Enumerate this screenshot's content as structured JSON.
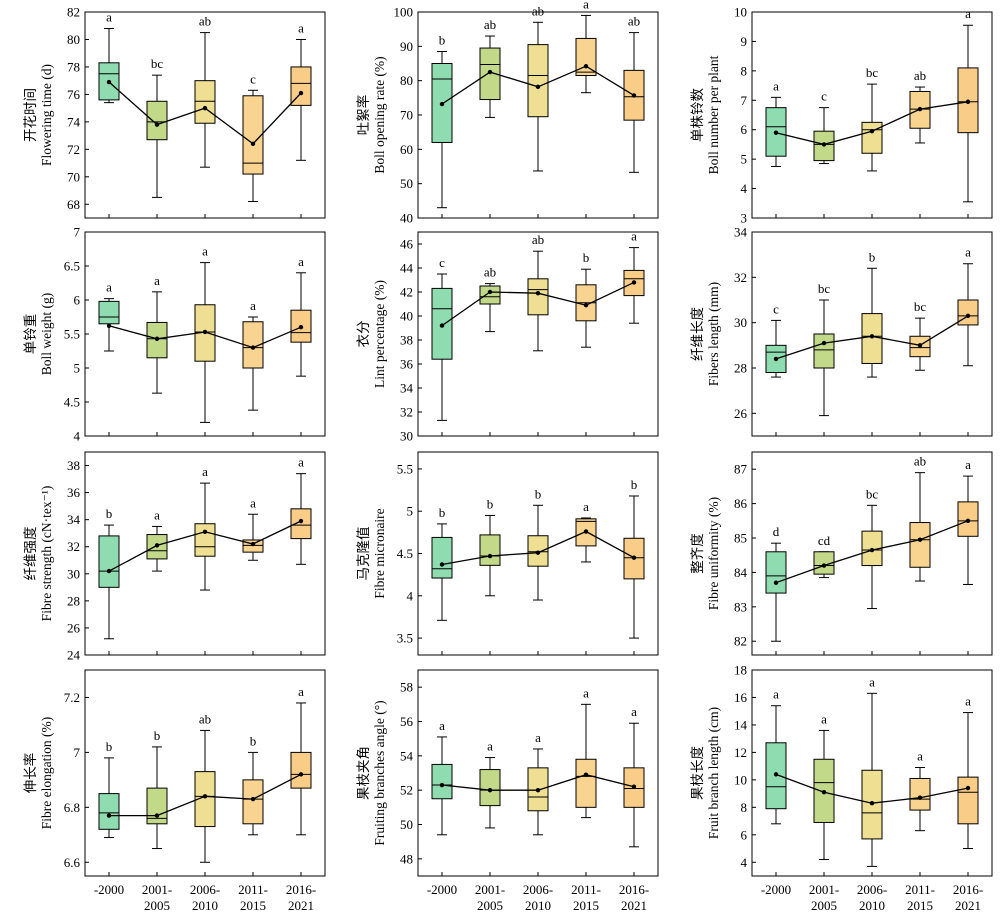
{
  "categories": [
    "-2000",
    "2001-\n2005",
    "2006-\n2010",
    "2011-\n2015",
    "2016-\n2021"
  ],
  "colors": [
    "#8fdcb0",
    "#c3d98a",
    "#eedf92",
    "#f8d490",
    "#f9cd88"
  ],
  "chart_data": [
    {
      "type": "box",
      "ylabel_cn": "开花时间",
      "ylabel_en": "Flowering time (d)",
      "ylim": [
        67,
        82
      ],
      "yticks": [
        68,
        70,
        72,
        74,
        76,
        78,
        80,
        82
      ],
      "boxes": [
        {
          "min": 75.4,
          "q1": 75.6,
          "median": 77.5,
          "q3": 78.3,
          "max": 80.8,
          "mean": 76.9,
          "sig": "a"
        },
        {
          "min": 68.5,
          "q1": 72.7,
          "median": 74.0,
          "q3": 75.5,
          "max": 77.4,
          "mean": 73.8,
          "sig": "bc"
        },
        {
          "min": 70.7,
          "q1": 73.9,
          "median": 75.5,
          "q3": 77.0,
          "max": 80.5,
          "mean": 75.0,
          "sig": "ab"
        },
        {
          "min": 68.2,
          "q1": 70.2,
          "median": 71.0,
          "q3": 75.9,
          "max": 76.3,
          "mean": 72.4,
          "sig": "c"
        },
        {
          "min": 71.2,
          "q1": 75.2,
          "median": 76.8,
          "q3": 78.0,
          "max": 80.0,
          "mean": 76.1,
          "sig": "a"
        }
      ]
    },
    {
      "type": "box",
      "ylabel_cn": "吐絮率",
      "ylabel_en": "Boll opening rate (%)",
      "ylim": [
        40,
        100
      ],
      "yticks": [
        40,
        50,
        60,
        70,
        80,
        90,
        100
      ],
      "boxes": [
        {
          "min": 43.0,
          "q1": 62.0,
          "median": 80.5,
          "q3": 85.0,
          "max": 88.5,
          "mean": 73.2,
          "sig": "b"
        },
        {
          "min": 69.3,
          "q1": 74.5,
          "median": 84.7,
          "q3": 89.5,
          "max": 93.0,
          "mean": 82.5,
          "sig": "ab"
        },
        {
          "min": 53.7,
          "q1": 69.5,
          "median": 81.5,
          "q3": 90.5,
          "max": 97.0,
          "mean": 78.2,
          "sig": "ab"
        },
        {
          "min": 76.5,
          "q1": 81.5,
          "median": 82.5,
          "q3": 92.3,
          "max": 99.0,
          "mean": 84.2,
          "sig": "a"
        },
        {
          "min": 53.3,
          "q1": 68.5,
          "median": 75.3,
          "q3": 83.0,
          "max": 94.0,
          "mean": 75.7,
          "sig": "ab"
        }
      ]
    },
    {
      "type": "box",
      "ylabel_cn": "单株铃数",
      "ylabel_en": "Boll number per plant",
      "ylim": [
        3,
        10
      ],
      "yticks": [
        3,
        4,
        5,
        6,
        7,
        8,
        9,
        10
      ],
      "boxes": [
        {
          "min": 4.75,
          "q1": 5.1,
          "median": 6.1,
          "q3": 6.75,
          "max": 7.1,
          "mean": 5.9,
          "sig": "a"
        },
        {
          "min": 4.85,
          "q1": 4.95,
          "median": 5.5,
          "q3": 5.95,
          "max": 6.75,
          "mean": 5.5,
          "sig": "c"
        },
        {
          "min": 4.6,
          "q1": 5.2,
          "median": 6.0,
          "q3": 6.25,
          "max": 7.55,
          "mean": 5.95,
          "sig": "bc"
        },
        {
          "min": 5.55,
          "q1": 6.05,
          "median": 6.7,
          "q3": 7.3,
          "max": 7.45,
          "mean": 6.7,
          "sig": "ab"
        },
        {
          "min": 3.55,
          "q1": 5.9,
          "median": 6.95,
          "q3": 8.1,
          "max": 9.55,
          "mean": 6.95,
          "sig": "a"
        }
      ]
    },
    {
      "type": "box",
      "ylabel_cn": "单铃重",
      "ylabel_en": "Boll weight (g)",
      "ylim": [
        4.0,
        7.0
      ],
      "yticks": [
        4.0,
        4.5,
        5.0,
        5.5,
        6.0,
        6.5,
        7.0
      ],
      "boxes": [
        {
          "min": 5.25,
          "q1": 5.65,
          "median": 5.75,
          "q3": 5.98,
          "max": 6.02,
          "mean": 5.62,
          "sig": "a"
        },
        {
          "min": 4.63,
          "q1": 5.15,
          "median": 5.43,
          "q3": 5.67,
          "max": 6.12,
          "mean": 5.43,
          "sig": "a"
        },
        {
          "min": 4.2,
          "q1": 5.1,
          "median": 5.53,
          "q3": 5.93,
          "max": 6.55,
          "mean": 5.53,
          "sig": "a"
        },
        {
          "min": 4.38,
          "q1": 5.0,
          "median": 5.3,
          "q3": 5.68,
          "max": 5.75,
          "mean": 5.3,
          "sig": "a"
        },
        {
          "min": 4.88,
          "q1": 5.38,
          "median": 5.52,
          "q3": 5.85,
          "max": 6.4,
          "mean": 5.6,
          "sig": "a"
        }
      ]
    },
    {
      "type": "box",
      "ylabel_cn": "衣分",
      "ylabel_en": "Lint percentage (%)",
      "ylim": [
        30,
        47
      ],
      "yticks": [
        30,
        32,
        34,
        36,
        38,
        40,
        42,
        44,
        46
      ],
      "boxes": [
        {
          "min": 31.3,
          "q1": 36.4,
          "median": 40.6,
          "q3": 42.3,
          "max": 43.5,
          "mean": 39.2,
          "sig": "c"
        },
        {
          "min": 38.7,
          "q1": 41.0,
          "median": 41.6,
          "q3": 42.5,
          "max": 42.7,
          "mean": 42.0,
          "sig": "ab"
        },
        {
          "min": 37.1,
          "q1": 40.1,
          "median": 42.2,
          "q3": 43.1,
          "max": 45.4,
          "mean": 41.9,
          "sig": "ab"
        },
        {
          "min": 37.4,
          "q1": 39.6,
          "median": 41.1,
          "q3": 42.6,
          "max": 43.9,
          "mean": 40.9,
          "sig": "b"
        },
        {
          "min": 39.4,
          "q1": 41.7,
          "median": 43.1,
          "q3": 43.8,
          "max": 45.7,
          "mean": 42.8,
          "sig": "a"
        }
      ]
    },
    {
      "type": "box",
      "ylabel_cn": "纤维长度",
      "ylabel_en": "Fibers length (mm)",
      "ylim": [
        25,
        34
      ],
      "yticks": [
        26,
        28,
        30,
        32,
        34
      ],
      "boxes": [
        {
          "min": 27.6,
          "q1": 27.8,
          "median": 28.7,
          "q3": 29.0,
          "max": 30.1,
          "mean": 28.4,
          "sig": "c"
        },
        {
          "min": 25.9,
          "q1": 28.0,
          "median": 28.8,
          "q3": 29.5,
          "max": 31.0,
          "mean": 29.1,
          "sig": "bc"
        },
        {
          "min": 27.6,
          "q1": 28.2,
          "median": 29.4,
          "q3": 30.4,
          "max": 32.4,
          "mean": 29.4,
          "sig": "b"
        },
        {
          "min": 27.9,
          "q1": 28.5,
          "median": 28.9,
          "q3": 29.4,
          "max": 30.2,
          "mean": 29.0,
          "sig": "bc"
        },
        {
          "min": 28.1,
          "q1": 29.9,
          "median": 30.3,
          "q3": 31.0,
          "max": 32.6,
          "mean": 30.3,
          "sig": "a"
        }
      ]
    },
    {
      "type": "box",
      "ylabel_cn": "纤维强度",
      "ylabel_en": "Fibre strength (cN·tex⁻¹)",
      "ylim": [
        24,
        39
      ],
      "yticks": [
        24,
        26,
        28,
        30,
        32,
        34,
        36,
        38
      ],
      "boxes": [
        {
          "min": 25.2,
          "q1": 29.0,
          "median": 30.2,
          "q3": 32.8,
          "max": 33.6,
          "mean": 30.2,
          "sig": "b"
        },
        {
          "min": 30.2,
          "q1": 31.1,
          "median": 31.7,
          "q3": 32.9,
          "max": 33.5,
          "mean": 32.1,
          "sig": "a"
        },
        {
          "min": 28.8,
          "q1": 31.3,
          "median": 32.0,
          "q3": 33.7,
          "max": 36.7,
          "mean": 33.1,
          "sig": "a"
        },
        {
          "min": 31.0,
          "q1": 31.6,
          "median": 32.1,
          "q3": 32.5,
          "max": 34.4,
          "mean": 32.2,
          "sig": "a"
        },
        {
          "min": 30.7,
          "q1": 32.6,
          "median": 33.6,
          "q3": 34.8,
          "max": 37.4,
          "mean": 33.9,
          "sig": "a"
        }
      ]
    },
    {
      "type": "box",
      "ylabel_cn": "马克隆值",
      "ylabel_en": "Fibre micronaire",
      "ylim": [
        3.3,
        5.7
      ],
      "yticks": [
        3.5,
        4.0,
        4.5,
        5.0,
        5.5
      ],
      "boxes": [
        {
          "min": 3.71,
          "q1": 4.21,
          "median": 4.32,
          "q3": 4.69,
          "max": 4.85,
          "mean": 4.37,
          "sig": "b"
        },
        {
          "min": 4.0,
          "q1": 4.36,
          "median": 4.47,
          "q3": 4.72,
          "max": 4.95,
          "mean": 4.47,
          "sig": "b"
        },
        {
          "min": 3.95,
          "q1": 4.35,
          "median": 4.52,
          "q3": 4.71,
          "max": 5.07,
          "mean": 4.51,
          "sig": "b"
        },
        {
          "min": 4.4,
          "q1": 4.59,
          "median": 4.88,
          "q3": 4.91,
          "max": 4.92,
          "mean": 4.76,
          "sig": "a"
        },
        {
          "min": 3.5,
          "q1": 4.2,
          "median": 4.45,
          "q3": 4.68,
          "max": 5.18,
          "mean": 4.45,
          "sig": "b"
        }
      ]
    },
    {
      "type": "box",
      "ylabel_cn": "整齐度",
      "ylabel_en": "Fibre uniformity (%)",
      "ylim": [
        81.6,
        87.5
      ],
      "yticks": [
        82,
        83,
        84,
        85,
        86,
        87
      ],
      "boxes": [
        {
          "min": 82.0,
          "q1": 83.4,
          "median": 83.9,
          "q3": 84.6,
          "max": 84.85,
          "mean": 83.7,
          "sig": "d"
        },
        {
          "min": 83.85,
          "q1": 83.95,
          "median": 84.2,
          "q3": 84.6,
          "max": 84.6,
          "mean": 84.2,
          "sig": "cd"
        },
        {
          "min": 82.95,
          "q1": 84.2,
          "median": 84.65,
          "q3": 85.2,
          "max": 85.95,
          "mean": 84.65,
          "sig": "bc"
        },
        {
          "min": 83.75,
          "q1": 84.15,
          "median": 84.95,
          "q3": 85.45,
          "max": 86.9,
          "mean": 84.95,
          "sig": "ab"
        },
        {
          "min": 83.65,
          "q1": 85.05,
          "median": 85.5,
          "q3": 86.05,
          "max": 86.8,
          "mean": 85.5,
          "sig": "a"
        }
      ]
    },
    {
      "type": "box",
      "ylabel_cn": "伸长率",
      "ylabel_en": "Fibre elongation (%)",
      "ylim": [
        6.55,
        7.3
      ],
      "yticks": [
        6.6,
        6.8,
        7.0,
        7.2
      ],
      "boxes": [
        {
          "min": 6.69,
          "q1": 6.72,
          "median": 6.78,
          "q3": 6.85,
          "max": 6.98,
          "mean": 6.77,
          "sig": "b"
        },
        {
          "min": 6.65,
          "q1": 6.74,
          "median": 6.76,
          "q3": 6.87,
          "max": 7.02,
          "mean": 6.77,
          "sig": "b"
        },
        {
          "min": 6.6,
          "q1": 6.73,
          "median": 6.84,
          "q3": 6.93,
          "max": 7.08,
          "mean": 6.84,
          "sig": "ab"
        },
        {
          "min": 6.7,
          "q1": 6.74,
          "median": 6.83,
          "q3": 6.9,
          "max": 7.0,
          "mean": 6.83,
          "sig": "b"
        },
        {
          "min": 6.7,
          "q1": 6.87,
          "median": 6.92,
          "q3": 7.0,
          "max": 7.18,
          "mean": 6.92,
          "sig": "a"
        }
      ]
    },
    {
      "type": "box",
      "ylabel_cn": "果枝夹角",
      "ylabel_en": "Fruiting branches angle (°)",
      "ylim": [
        47,
        59
      ],
      "yticks": [
        48,
        50,
        52,
        54,
        56,
        58
      ],
      "boxes": [
        {
          "min": 49.4,
          "q1": 51.5,
          "median": 52.3,
          "q3": 53.5,
          "max": 55.1,
          "mean": 52.3,
          "sig": "a"
        },
        {
          "min": 49.8,
          "q1": 51.1,
          "median": 52.0,
          "q3": 53.2,
          "max": 53.9,
          "mean": 52.0,
          "sig": "a"
        },
        {
          "min": 49.4,
          "q1": 50.8,
          "median": 51.6,
          "q3": 53.3,
          "max": 54.4,
          "mean": 52.0,
          "sig": "a"
        },
        {
          "min": 50.4,
          "q1": 51.0,
          "median": 52.8,
          "q3": 53.8,
          "max": 57.0,
          "mean": 52.9,
          "sig": "a"
        },
        {
          "min": 48.7,
          "q1": 51.0,
          "median": 52.1,
          "q3": 53.3,
          "max": 55.9,
          "mean": 52.2,
          "sig": "a"
        }
      ]
    },
    {
      "type": "box",
      "ylabel_cn": "果枝长度",
      "ylabel_en": "Fruit branch length (cm)",
      "ylim": [
        3,
        18
      ],
      "yticks": [
        4,
        6,
        8,
        10,
        12,
        14,
        16,
        18
      ],
      "boxes": [
        {
          "min": 6.8,
          "q1": 7.9,
          "median": 9.5,
          "q3": 12.7,
          "max": 15.4,
          "mean": 10.4,
          "sig": "a"
        },
        {
          "min": 4.2,
          "q1": 6.9,
          "median": 9.8,
          "q3": 11.5,
          "max": 13.6,
          "mean": 9.1,
          "sig": "a"
        },
        {
          "min": 3.7,
          "q1": 5.7,
          "median": 7.6,
          "q3": 10.7,
          "max": 16.3,
          "mean": 8.3,
          "sig": "a"
        },
        {
          "min": 6.3,
          "q1": 7.8,
          "median": 8.6,
          "q3": 10.1,
          "max": 10.9,
          "mean": 8.7,
          "sig": "a"
        },
        {
          "min": 5.0,
          "q1": 6.8,
          "median": 9.1,
          "q3": 10.2,
          "max": 14.9,
          "mean": 9.4,
          "sig": "a"
        }
      ]
    }
  ]
}
